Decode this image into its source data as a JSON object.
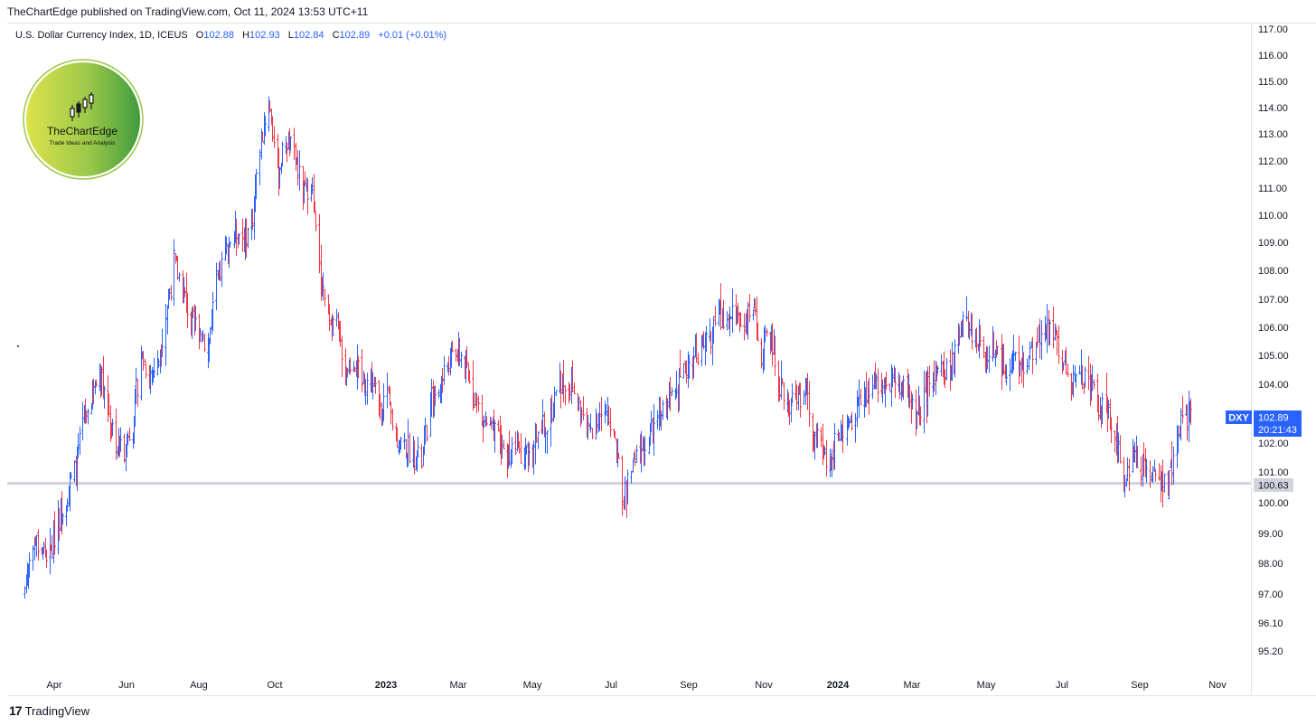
{
  "header": {
    "publish_line": "TheChartEdge published on TradingView.com, Oct 11, 2024 13:53 UTC+11"
  },
  "legend": {
    "symbol_text": "U.S. Dollar Currency Index, 1D, ICEUS",
    "open_label": "O",
    "open_value": "102.88",
    "high_label": "H",
    "high_value": "102.93",
    "low_label": "L",
    "low_value": "102.84",
    "close_label": "C",
    "close_value": "102.89",
    "change": "+0.01 (+0.01%)"
  },
  "logo": {
    "name": "TheChartEdge",
    "tagline": "Trade Ideas and Analysis"
  },
  "price_tags": {
    "symbol": "DXY",
    "last_price": "102.89",
    "countdown": "20:21:43",
    "horizontal_line_price": "100.63"
  },
  "footer": {
    "brand": "TradingView"
  },
  "colors": {
    "up": "#2962ff",
    "down": "#f23645",
    "line": "#d1d4dc",
    "price_tag": "#2962ff",
    "line_tag": "#d1d4dc"
  },
  "chart_data": {
    "type": "ohlc",
    "title": "U.S. Dollar Currency Index, 1D, ICEUS",
    "xlabel": "",
    "ylabel": "",
    "ylim": [
      94.5,
      117.5
    ],
    "y_scale": "log",
    "y_ticks": [
      95.2,
      96.1,
      97.0,
      98.0,
      99.0,
      100.0,
      101.0,
      102.0,
      103.0,
      104.0,
      105.0,
      106.0,
      107.0,
      108.0,
      109.0,
      110.0,
      111.0,
      112.0,
      113.0,
      114.0,
      115.0,
      116.0,
      117.0
    ],
    "x_ticks": [
      {
        "label": "Apr",
        "date": "2022-04-01"
      },
      {
        "label": "Jun",
        "date": "2022-06-01"
      },
      {
        "label": "Aug",
        "date": "2022-08-01"
      },
      {
        "label": "Oct",
        "date": "2022-10-01"
      },
      {
        "label": "2023",
        "date": "2023-01-01",
        "bold": true
      },
      {
        "label": "Mar",
        "date": "2023-03-01"
      },
      {
        "label": "May",
        "date": "2023-05-01"
      },
      {
        "label": "Jul",
        "date": "2023-07-01"
      },
      {
        "label": "Sep",
        "date": "2023-09-01"
      },
      {
        "label": "Nov",
        "date": "2023-11-01"
      },
      {
        "label": "2024",
        "date": "2024-01-01",
        "bold": true
      },
      {
        "label": "Mar",
        "date": "2024-03-01"
      },
      {
        "label": "May",
        "date": "2024-05-01"
      },
      {
        "label": "Jul",
        "date": "2024-07-01"
      },
      {
        "label": "Sep",
        "date": "2024-09-01"
      },
      {
        "label": "Nov",
        "date": "2024-11-01"
      }
    ],
    "horizontal_line": 100.63,
    "last_price": 102.89,
    "series": [
      {
        "name": "DXY",
        "path": [
          [
            "2022-03-07",
            97.2
          ],
          [
            "2022-03-14",
            98.8
          ],
          [
            "2022-03-21",
            98.5
          ],
          [
            "2022-03-28",
            98.2
          ],
          [
            "2022-04-04",
            99.5
          ],
          [
            "2022-04-11",
            100.2
          ],
          [
            "2022-04-18",
            101.0
          ],
          [
            "2022-04-25",
            102.6
          ],
          [
            "2022-05-02",
            103.5
          ],
          [
            "2022-05-09",
            104.5
          ],
          [
            "2022-05-16",
            103.3
          ],
          [
            "2022-05-23",
            102.0
          ],
          [
            "2022-05-30",
            101.8
          ],
          [
            "2022-06-06",
            102.8
          ],
          [
            "2022-06-13",
            105.0
          ],
          [
            "2022-06-20",
            104.4
          ],
          [
            "2022-06-27",
            104.6
          ],
          [
            "2022-07-04",
            106.5
          ],
          [
            "2022-07-11",
            108.3
          ],
          [
            "2022-07-18",
            107.4
          ],
          [
            "2022-07-25",
            106.2
          ],
          [
            "2022-08-01",
            106.0
          ],
          [
            "2022-08-08",
            105.3
          ],
          [
            "2022-08-15",
            107.5
          ],
          [
            "2022-08-22",
            108.6
          ],
          [
            "2022-08-29",
            109.5
          ],
          [
            "2022-09-05",
            109.2
          ],
          [
            "2022-09-12",
            109.6
          ],
          [
            "2022-09-19",
            112.5
          ],
          [
            "2022-09-26",
            114.3
          ],
          [
            "2022-10-03",
            111.5
          ],
          [
            "2022-10-10",
            112.8
          ],
          [
            "2022-10-17",
            112.2
          ],
          [
            "2022-10-24",
            110.8
          ],
          [
            "2022-10-31",
            111.2
          ],
          [
            "2022-11-07",
            108.0
          ],
          [
            "2022-11-14",
            106.5
          ],
          [
            "2022-11-21",
            106.0
          ],
          [
            "2022-11-28",
            104.6
          ],
          [
            "2022-12-05",
            104.9
          ],
          [
            "2022-12-12",
            104.0
          ],
          [
            "2022-12-19",
            104.2
          ],
          [
            "2022-12-26",
            103.4
          ],
          [
            "2023-01-02",
            103.5
          ],
          [
            "2023-01-09",
            102.2
          ],
          [
            "2023-01-16",
            101.9
          ],
          [
            "2023-01-23",
            101.7
          ],
          [
            "2023-01-30",
            101.3
          ],
          [
            "2023-02-06",
            103.4
          ],
          [
            "2023-02-13",
            103.8
          ],
          [
            "2023-02-20",
            104.8
          ],
          [
            "2023-02-27",
            105.2
          ],
          [
            "2023-03-06",
            104.8
          ],
          [
            "2023-03-13",
            103.8
          ],
          [
            "2023-03-20",
            102.8
          ],
          [
            "2023-03-27",
            102.6
          ],
          [
            "2023-04-03",
            102.0
          ],
          [
            "2023-04-10",
            101.6
          ],
          [
            "2023-04-17",
            101.8
          ],
          [
            "2023-04-24",
            101.6
          ],
          [
            "2023-05-01",
            101.4
          ],
          [
            "2023-05-08",
            102.5
          ],
          [
            "2023-05-15",
            103.0
          ],
          [
            "2023-05-22",
            104.2
          ],
          [
            "2023-05-29",
            104.0
          ],
          [
            "2023-06-05",
            103.5
          ],
          [
            "2023-06-12",
            102.3
          ],
          [
            "2023-06-19",
            102.9
          ],
          [
            "2023-06-26",
            102.9
          ],
          [
            "2023-07-03",
            102.5
          ],
          [
            "2023-07-10",
            100.0
          ],
          [
            "2023-07-17",
            101.1
          ],
          [
            "2023-07-24",
            101.7
          ],
          [
            "2023-07-31",
            102.1
          ],
          [
            "2023-08-07",
            102.8
          ],
          [
            "2023-08-14",
            103.3
          ],
          [
            "2023-08-21",
            104.1
          ],
          [
            "2023-08-28",
            104.3
          ],
          [
            "2023-09-04",
            105.0
          ],
          [
            "2023-09-11",
            105.3
          ],
          [
            "2023-09-18",
            105.6
          ],
          [
            "2023-09-25",
            106.5
          ],
          [
            "2023-10-02",
            106.1
          ],
          [
            "2023-10-09",
            106.6
          ],
          [
            "2023-10-16",
            106.2
          ],
          [
            "2023-10-23",
            106.6
          ],
          [
            "2023-10-30",
            105.1
          ],
          [
            "2023-11-06",
            105.9
          ],
          [
            "2023-11-13",
            104.0
          ],
          [
            "2023-11-20",
            103.4
          ],
          [
            "2023-11-27",
            103.2
          ],
          [
            "2023-12-04",
            104.0
          ],
          [
            "2023-12-11",
            102.5
          ],
          [
            "2023-12-18",
            101.7
          ],
          [
            "2023-12-25",
            101.3
          ],
          [
            "2024-01-01",
            102.4
          ],
          [
            "2024-01-08",
            102.4
          ],
          [
            "2024-01-15",
            103.3
          ],
          [
            "2024-01-22",
            103.4
          ],
          [
            "2024-01-29",
            104.0
          ],
          [
            "2024-02-05",
            104.1
          ],
          [
            "2024-02-12",
            104.2
          ],
          [
            "2024-02-19",
            103.9
          ],
          [
            "2024-02-26",
            103.8
          ],
          [
            "2024-03-04",
            102.7
          ],
          [
            "2024-03-11",
            103.4
          ],
          [
            "2024-03-18",
            104.4
          ],
          [
            "2024-03-25",
            104.5
          ],
          [
            "2024-04-01",
            104.2
          ],
          [
            "2024-04-08",
            105.9
          ],
          [
            "2024-04-15",
            106.1
          ],
          [
            "2024-04-22",
            105.7
          ],
          [
            "2024-04-29",
            105.0
          ],
          [
            "2024-05-06",
            105.3
          ],
          [
            "2024-05-13",
            104.6
          ],
          [
            "2024-05-20",
            104.7
          ],
          [
            "2024-05-27",
            104.6
          ],
          [
            "2024-06-03",
            104.9
          ],
          [
            "2024-06-10",
            105.6
          ],
          [
            "2024-06-17",
            105.8
          ],
          [
            "2024-06-24",
            105.9
          ],
          [
            "2024-07-01",
            104.9
          ],
          [
            "2024-07-08",
            104.1
          ],
          [
            "2024-07-15",
            104.3
          ],
          [
            "2024-07-22",
            104.3
          ],
          [
            "2024-07-29",
            103.2
          ],
          [
            "2024-08-05",
            103.1
          ],
          [
            "2024-08-12",
            102.4
          ],
          [
            "2024-08-19",
            100.7
          ],
          [
            "2024-08-26",
            101.7
          ],
          [
            "2024-09-02",
            101.2
          ],
          [
            "2024-09-09",
            101.1
          ],
          [
            "2024-09-16",
            100.7
          ],
          [
            "2024-09-23",
            100.4
          ],
          [
            "2024-09-30",
            102.5
          ],
          [
            "2024-10-07",
            102.89
          ]
        ]
      }
    ]
  }
}
